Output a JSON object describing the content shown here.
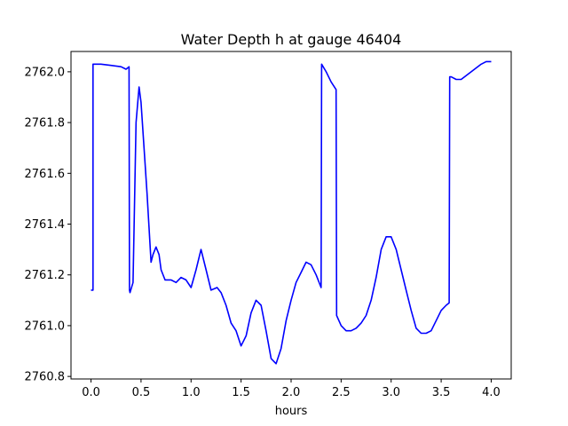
{
  "chart_data": {
    "type": "line",
    "title": "Water Depth h at gauge 46404",
    "xlabel": "hours",
    "ylabel": "",
    "xlim": [
      -0.2,
      4.2
    ],
    "ylim": [
      2760.79,
      2762.08
    ],
    "xticks": [
      0.0,
      0.5,
      1.0,
      1.5,
      2.0,
      2.5,
      3.0,
      3.5,
      4.0
    ],
    "xtick_labels": [
      "0.0",
      "0.5",
      "1.0",
      "1.5",
      "2.0",
      "2.5",
      "3.0",
      "3.5",
      "4.0"
    ],
    "yticks": [
      2760.8,
      2761.0,
      2761.2,
      2761.4,
      2761.6,
      2761.8,
      2762.0
    ],
    "ytick_labels": [
      "2760.8",
      "2761.0",
      "2761.2",
      "2761.4",
      "2761.6",
      "2761.8",
      "2762.0"
    ],
    "grid": false,
    "series": [
      {
        "color": "#0000ff",
        "x": [
          0.0,
          0.02,
          0.02,
          0.1,
          0.2,
          0.3,
          0.35,
          0.38,
          0.385,
          0.39,
          0.42,
          0.45,
          0.48,
          0.5,
          0.53,
          0.56,
          0.6,
          0.62,
          0.65,
          0.68,
          0.7,
          0.74,
          0.8,
          0.85,
          0.9,
          0.95,
          1.0,
          1.05,
          1.1,
          1.15,
          1.2,
          1.26,
          1.3,
          1.35,
          1.4,
          1.45,
          1.5,
          1.55,
          1.6,
          1.65,
          1.7,
          1.75,
          1.8,
          1.85,
          1.9,
          1.95,
          2.0,
          2.05,
          2.1,
          2.15,
          2.2,
          2.25,
          2.3,
          2.305,
          2.35,
          2.4,
          2.45,
          2.455,
          2.5,
          2.55,
          2.6,
          2.65,
          2.7,
          2.75,
          2.8,
          2.85,
          2.9,
          2.95,
          3.0,
          3.05,
          3.1,
          3.15,
          3.2,
          3.25,
          3.3,
          3.35,
          3.4,
          3.45,
          3.5,
          3.55,
          3.58,
          3.585,
          3.6,
          3.65,
          3.7,
          3.8,
          3.9,
          3.95,
          4.0
        ],
        "y": [
          2761.14,
          2761.14,
          2762.03,
          2762.03,
          2762.025,
          2762.02,
          2762.01,
          2762.02,
          2761.14,
          2761.13,
          2761.17,
          2761.8,
          2761.94,
          2761.88,
          2761.7,
          2761.52,
          2761.25,
          2761.28,
          2761.31,
          2761.28,
          2761.22,
          2761.18,
          2761.18,
          2761.17,
          2761.19,
          2761.18,
          2761.15,
          2761.22,
          2761.3,
          2761.22,
          2761.14,
          2761.15,
          2761.13,
          2761.08,
          2761.01,
          2760.98,
          2760.92,
          2760.96,
          2761.05,
          2761.1,
          2761.08,
          2760.98,
          2760.87,
          2760.85,
          2760.91,
          2761.02,
          2761.1,
          2761.17,
          2761.21,
          2761.25,
          2761.24,
          2761.2,
          2761.15,
          2762.03,
          2762.0,
          2761.96,
          2761.93,
          2761.04,
          2761.0,
          2760.98,
          2760.98,
          2760.99,
          2761.01,
          2761.04,
          2761.1,
          2761.19,
          2761.3,
          2761.35,
          2761.35,
          2761.3,
          2761.22,
          2761.14,
          2761.06,
          2760.99,
          2760.97,
          2760.97,
          2760.98,
          2761.02,
          2761.06,
          2761.08,
          2761.09,
          2761.98,
          2761.98,
          2761.97,
          2761.97,
          2762.0,
          2762.03,
          2762.04,
          2762.04
        ]
      }
    ]
  }
}
